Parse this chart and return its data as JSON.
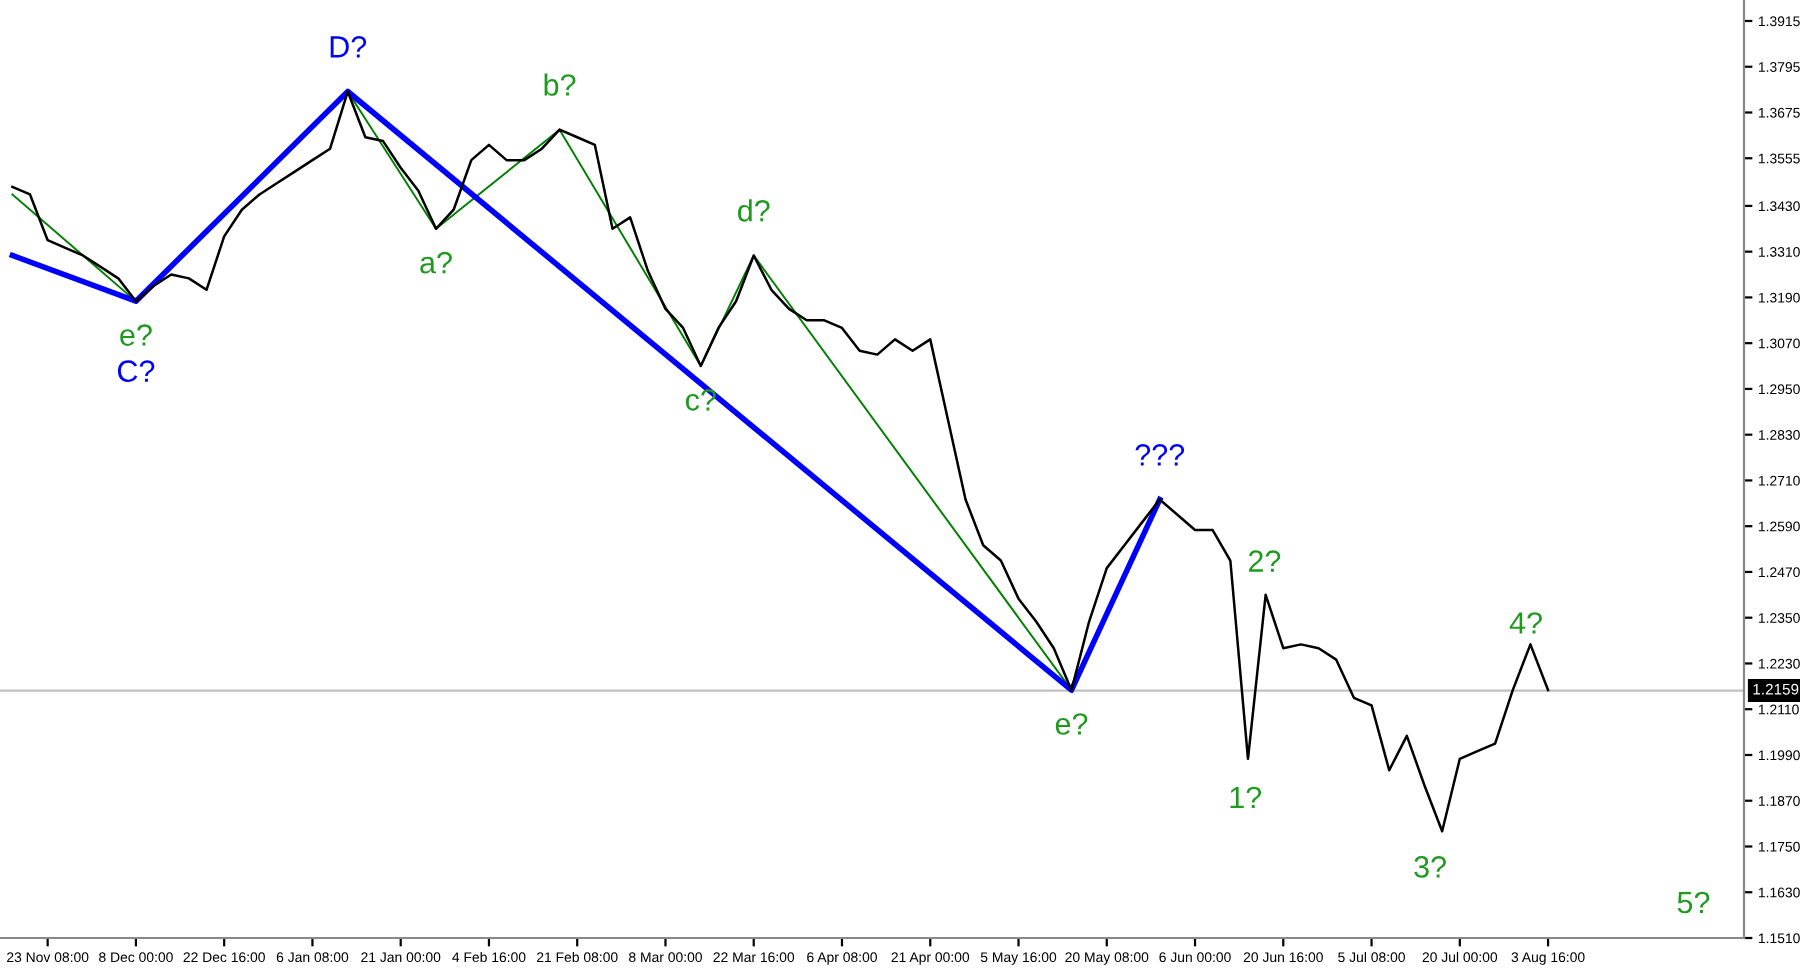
{
  "chart_data": {
    "type": "line",
    "ylim": [
      1.151,
      1.397
    ],
    "categories": [
      null,
      null,
      "23 Nov 08:00",
      null,
      null,
      null,
      null,
      "8 Dec 00:00",
      null,
      null,
      null,
      null,
      "22 Dec 16:00",
      null,
      null,
      null,
      null,
      "6 Jan 08:00",
      null,
      null,
      null,
      null,
      "21 Jan 00:00",
      null,
      null,
      null,
      null,
      "4 Feb 16:00",
      null,
      null,
      null,
      null,
      "21 Feb 08:00",
      null,
      null,
      null,
      null,
      "8 Mar 00:00",
      null,
      null,
      null,
      null,
      "22 Mar 16:00",
      null,
      null,
      null,
      null,
      "6 Apr 08:00",
      null,
      null,
      null,
      null,
      "21 Apr 00:00",
      null,
      null,
      null,
      null,
      "5 May 16:00",
      null,
      null,
      null,
      null,
      "20 May 08:00",
      null,
      null,
      null,
      null,
      "6 Jun 00:00",
      null,
      null,
      null,
      null,
      "20 Jun 16:00",
      null,
      null,
      null,
      null,
      "5 Jul 08:00",
      null,
      null,
      null,
      null,
      "20 Jul 00:00",
      null,
      null,
      null,
      null,
      "3 Aug 16:00",
      null,
      null,
      null,
      null,
      null,
      null,
      null,
      null,
      null,
      null
    ],
    "yticks": [
      1.3915,
      1.3795,
      1.3675,
      1.3555,
      {
        "value": 1.343,
        "label": "1.3430"
      },
      {
        "value": 1.331,
        "label": "1.3310"
      },
      {
        "value": 1.319,
        "label": "1.3190"
      },
      {
        "value": 1.307,
        "label": "1.3070"
      },
      {
        "value": 1.295,
        "label": "1.2950"
      },
      {
        "value": 1.283,
        "label": "1.2830"
      },
      {
        "value": 1.271,
        "label": "1.2710"
      },
      {
        "value": 1.259,
        "label": "1.2590"
      },
      {
        "value": 1.247,
        "label": "1.2470"
      },
      {
        "value": 1.235,
        "label": "1.2350"
      },
      {
        "value": 1.223,
        "label": "1.2230"
      },
      {
        "value": 1.211,
        "label": "1.2110"
      },
      {
        "value": 1.199,
        "label": "1.1990"
      },
      {
        "value": 1.187,
        "label": "1.1870"
      },
      {
        "value": 1.175,
        "label": "1.1750"
      },
      {
        "value": 1.163,
        "label": "1.1630"
      },
      {
        "value": 1.151,
        "label": "1.1510"
      }
    ],
    "grid": false,
    "legend": false,
    "marker": "none",
    "line_style": "solid",
    "series": [
      {
        "color": "#000000",
        "values": [
          1.348,
          1.346,
          1.334,
          1.332,
          1.33,
          1.327,
          1.324,
          1.318,
          1.322,
          1.325,
          1.324,
          1.321,
          1.335,
          1.342,
          1.346,
          1.349,
          1.352,
          1.355,
          1.358,
          1.373,
          1.361,
          1.36,
          1.353,
          1.347,
          1.337,
          1.342,
          1.355,
          1.359,
          1.355,
          1.355,
          1.358,
          1.363,
          1.361,
          1.359,
          1.337,
          1.34,
          1.326,
          1.316,
          1.311,
          1.301,
          1.311,
          1.318,
          1.33,
          1.321,
          1.316,
          1.313,
          1.313,
          1.311,
          1.305,
          1.304,
          1.308,
          1.305,
          1.308,
          1.287,
          1.266,
          1.254,
          1.25,
          1.24,
          1.234,
          1.227,
          1.216,
          1.234,
          1.248,
          1.254,
          1.26,
          1.266,
          1.262,
          1.258,
          1.258,
          1.25,
          1.198,
          1.241,
          1.227,
          1.228,
          1.227,
          1.224,
          1.214,
          1.212,
          1.195,
          1.204,
          1.191,
          1.179,
          1.198,
          1.2,
          1.202,
          1.216,
          1.228,
          1.216,
          null,
          null,
          null,
          null,
          null,
          null,
          null,
          null,
          null,
          null
        ],
        "name": null
      },
      {
        "color": "#0000ff",
        "values": [
          1.33,
          null,
          null,
          null,
          null,
          null,
          null,
          1.318,
          null,
          null,
          null,
          null,
          null,
          null,
          null,
          null,
          null,
          null,
          null,
          1.373,
          null,
          null,
          null,
          null,
          null,
          null,
          null,
          null,
          null,
          null,
          null,
          null,
          null,
          null,
          null,
          null,
          null,
          null,
          null,
          null,
          null,
          null,
          null,
          null,
          null,
          null,
          null,
          null,
          null,
          null,
          null,
          null,
          null,
          null,
          null,
          null,
          null,
          null,
          null,
          null,
          1.216,
          null,
          null,
          null,
          null,
          1.266,
          null,
          null,
          null,
          null,
          null,
          null,
          null,
          null,
          null,
          null,
          null,
          null,
          null,
          null,
          null,
          null,
          null,
          null,
          null,
          null,
          null,
          null,
          null,
          null,
          null,
          null,
          null,
          null,
          null,
          null,
          null,
          null
        ],
        "value_labels": [
          null,
          null,
          null,
          null,
          null,
          null,
          null,
          "C?",
          null,
          null,
          null,
          null,
          null,
          null,
          null,
          null,
          null,
          null,
          null,
          "D?",
          null,
          null,
          null,
          null,
          null,
          null,
          null,
          null,
          null,
          null,
          null,
          null,
          null,
          null,
          null,
          null,
          null,
          null,
          null,
          null,
          null,
          null,
          null,
          null,
          null,
          null,
          null,
          null,
          null,
          null,
          null,
          null,
          null,
          null,
          null,
          null,
          null,
          null,
          null,
          null,
          null,
          null,
          null,
          null,
          null,
          "???",
          null,
          null,
          null,
          null,
          null,
          null,
          null,
          null,
          null,
          null,
          null,
          null,
          null,
          null,
          null,
          null,
          null,
          null,
          null,
          null,
          null,
          null,
          null,
          null,
          null,
          null,
          null,
          null,
          null,
          null,
          null,
          null
        ]
      },
      {
        "color": "#008000",
        "values": [
          1.346,
          null,
          null,
          null,
          null,
          null,
          null,
          1.318,
          null,
          null,
          null,
          null,
          null,
          null,
          null,
          null,
          null,
          null,
          null,
          null,
          null,
          null,
          null,
          null,
          null,
          null,
          null,
          null,
          null,
          null,
          null,
          null,
          null,
          null,
          null,
          null,
          null,
          null,
          null,
          null,
          null,
          null,
          null,
          null,
          null,
          null,
          null,
          null,
          null,
          null,
          null,
          null,
          null,
          null,
          null,
          null,
          null,
          null,
          null,
          null,
          null,
          null,
          null,
          null,
          null,
          null,
          null,
          null,
          null,
          null,
          null,
          null,
          null,
          null,
          null,
          null,
          null,
          null,
          null,
          null,
          null,
          null,
          null,
          null,
          null,
          null,
          null,
          null,
          null,
          null,
          null,
          null,
          null,
          null,
          null,
          null,
          null,
          null
        ],
        "value_labels": [
          null,
          null,
          null,
          null,
          null,
          null,
          null,
          "e?",
          null,
          null,
          null,
          null,
          null,
          null,
          null,
          null,
          null,
          null,
          null,
          null,
          null,
          null,
          null,
          null,
          null,
          null,
          null,
          null,
          null,
          null,
          null,
          null,
          null,
          null,
          null,
          null,
          null,
          null,
          null,
          null,
          null,
          null,
          null,
          null,
          null,
          null,
          null,
          null,
          null,
          null,
          null,
          null,
          null,
          null,
          null,
          null,
          null,
          null,
          null,
          null,
          null,
          null,
          null,
          null,
          null,
          null,
          null,
          null,
          null,
          null,
          null,
          null,
          null,
          null,
          null,
          null,
          null,
          null,
          null,
          null,
          null,
          null,
          null,
          null,
          null,
          null,
          null,
          null,
          null,
          null,
          null,
          null,
          null,
          null,
          null,
          null,
          null,
          null
        ]
      },
      {
        "color": "#008000",
        "values": [
          null,
          null,
          null,
          null,
          null,
          null,
          null,
          null,
          null,
          null,
          null,
          null,
          null,
          null,
          null,
          null,
          null,
          null,
          null,
          1.373,
          null,
          null,
          null,
          null,
          1.337,
          null,
          null,
          null,
          null,
          null,
          null,
          1.363,
          null,
          null,
          null,
          null,
          null,
          null,
          null,
          1.301,
          null,
          null,
          1.33,
          null,
          null,
          null,
          null,
          null,
          null,
          null,
          null,
          null,
          null,
          null,
          null,
          null,
          null,
          null,
          null,
          null,
          1.216,
          null,
          null,
          null,
          null,
          null,
          null,
          null,
          null,
          null,
          null,
          null,
          null,
          null,
          null,
          null,
          null,
          null,
          null,
          null,
          null,
          null,
          null,
          null,
          null,
          null,
          null,
          null,
          null,
          null,
          null,
          null,
          null,
          null,
          null,
          null,
          null,
          null
        ],
        "value_labels": [
          null,
          null,
          null,
          null,
          null,
          null,
          null,
          null,
          null,
          null,
          null,
          null,
          null,
          null,
          null,
          null,
          null,
          null,
          null,
          null,
          null,
          null,
          null,
          null,
          "a?",
          null,
          null,
          null,
          null,
          null,
          null,
          "b?",
          null,
          null,
          null,
          null,
          null,
          null,
          null,
          "c?",
          null,
          null,
          "d?",
          null,
          null,
          null,
          null,
          null,
          null,
          null,
          null,
          null,
          null,
          null,
          null,
          null,
          null,
          null,
          null,
          null,
          "e?",
          null,
          null,
          null,
          null,
          null,
          null,
          null,
          null,
          null,
          null,
          null,
          null,
          null,
          null,
          null,
          null,
          null,
          null,
          null,
          null,
          null,
          null,
          null,
          null,
          null,
          null,
          null,
          null,
          null,
          null,
          null,
          null,
          null,
          null,
          null,
          null,
          null
        ]
      }
    ],
    "ref_lines": [
      {
        "axis": "y",
        "value": 1.2159,
        "label": "1.2159",
        "color": "#c0c0c0"
      }
    ],
    "annotations": [
      "1?",
      "2?",
      "3?",
      "4?",
      "5?"
    ]
  }
}
